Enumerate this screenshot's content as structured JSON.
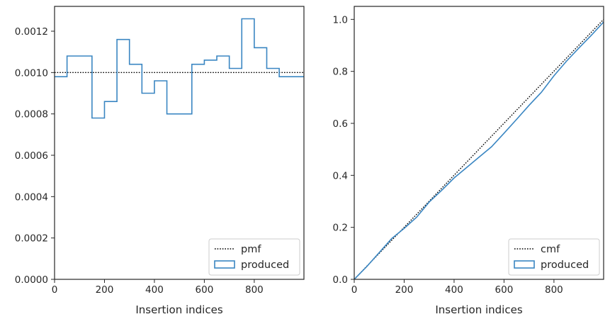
{
  "chart_data": [
    {
      "type": "line",
      "step": true,
      "title": "",
      "xlabel": "Insertion indices",
      "ylabel": "",
      "xlim": [
        0,
        999
      ],
      "ylim": [
        0,
        0.00132
      ],
      "xticks": [
        0,
        200,
        400,
        600,
        800
      ],
      "xtick_labels": [
        "0",
        "200",
        "400",
        "600",
        "800"
      ],
      "yticks": [
        0,
        0.0002,
        0.0004,
        0.0006,
        0.0008,
        0.001,
        0.0012
      ],
      "ytick_labels": [
        "0.0000",
        "0.0002",
        "0.0004",
        "0.0006",
        "0.0008",
        "0.0010",
        "0.0012"
      ],
      "grid": false,
      "legend_position": "lower-right",
      "series": [
        {
          "name": "pmf",
          "style": "dotted",
          "color": "#000000",
          "x": [
            0,
            999
          ],
          "y": [
            0.001,
            0.001
          ]
        },
        {
          "name": "produced",
          "style": "step",
          "color": "#3a86c2",
          "bin_edges": [
            0,
            50,
            100,
            150,
            200,
            250,
            300,
            350,
            400,
            450,
            500,
            550,
            600,
            650,
            700,
            750,
            800,
            850,
            900,
            950,
            999
          ],
          "values": [
            0.00098,
            0.00108,
            0.00108,
            0.00078,
            0.00086,
            0.00116,
            0.00104,
            0.0009,
            0.00096,
            0.0008,
            0.0008,
            0.00104,
            0.00106,
            0.00108,
            0.00102,
            0.00126,
            0.00112,
            0.00102,
            0.00098,
            0.00098
          ]
        }
      ]
    },
    {
      "type": "line",
      "title": "",
      "xlabel": "Insertion indices",
      "ylabel": "",
      "xlim": [
        0,
        999
      ],
      "ylim": [
        0,
        1.05
      ],
      "xticks": [
        0,
        200,
        400,
        600,
        800
      ],
      "xtick_labels": [
        "0",
        "200",
        "400",
        "600",
        "800"
      ],
      "yticks": [
        0,
        0.2,
        0.4,
        0.6,
        0.8,
        1.0
      ],
      "ytick_labels": [
        "0.0",
        "0.2",
        "0.4",
        "0.6",
        "0.8",
        "1.0"
      ],
      "grid": false,
      "legend_position": "lower-right",
      "series": [
        {
          "name": "cmf",
          "style": "dotted",
          "color": "#000000",
          "x": [
            0,
            999
          ],
          "y": [
            0,
            1
          ]
        },
        {
          "name": "produced",
          "style": "solid",
          "color": "#3a86c2",
          "x": [
            0,
            50,
            100,
            150,
            200,
            250,
            300,
            350,
            400,
            450,
            500,
            550,
            600,
            650,
            700,
            750,
            800,
            850,
            900,
            950,
            999
          ],
          "y": [
            0,
            0.049,
            0.103,
            0.157,
            0.196,
            0.239,
            0.297,
            0.342,
            0.39,
            0.43,
            0.47,
            0.51,
            0.562,
            0.615,
            0.669,
            0.72,
            0.783,
            0.839,
            0.89,
            0.939,
            0.99
          ]
        }
      ]
    }
  ]
}
